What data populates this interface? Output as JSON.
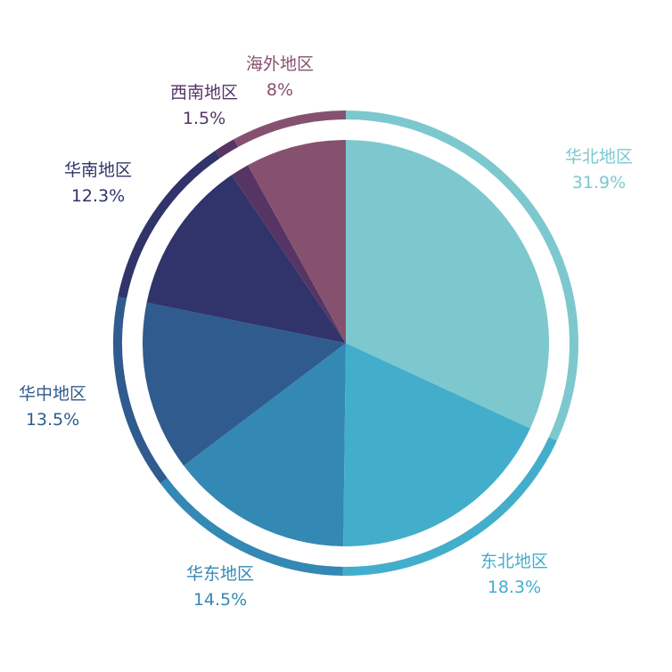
{
  "chart_data": {
    "type": "pie",
    "title": "",
    "unit": "%",
    "categories": [
      "华北地区",
      "东北地区",
      "华东地区",
      "华中地区",
      "华南地区",
      "西南地区",
      "海外地区"
    ],
    "values": [
      31.9,
      18.3,
      14.5,
      13.5,
      12.3,
      1.5,
      8
    ],
    "value_labels": [
      "31.9%",
      "18.3%",
      "14.5%",
      "13.5%",
      "12.3%",
      "1.5%",
      "8%"
    ],
    "colors": [
      "#7DC8CF",
      "#43AECB",
      "#3488B4",
      "#2F5B8E",
      "#30346A",
      "#563565",
      "#86516F"
    ],
    "start_angle_deg": 0,
    "direction": "clockwise",
    "outer_ring": true,
    "legend": "none"
  }
}
